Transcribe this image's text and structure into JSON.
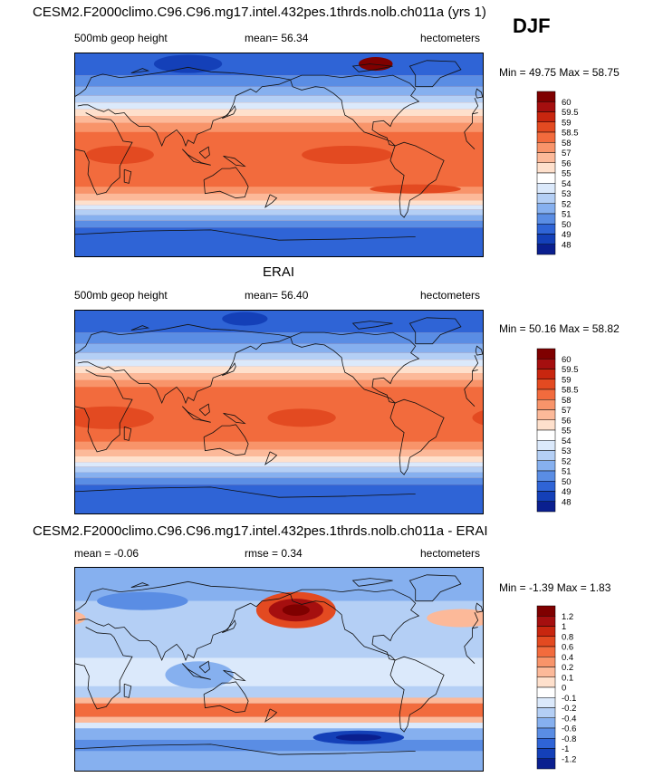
{
  "season": "DJF",
  "panels": [
    {
      "title": "CESM2.F2000climo.C96.C96.mg17.intel.432pes.1thrds.nolb.ch011a (yrs 1)",
      "left_label": "500mb geop height",
      "mid_label": "mean=  56.34",
      "units": "hectometers",
      "minmax": "Min =  49.75 Max =  58.75",
      "colorbar": {
        "labels": [
          "60",
          "59.5",
          "59",
          "58.5",
          "58",
          "57",
          "56",
          "55",
          "54",
          "53",
          "52",
          "51",
          "50",
          "49",
          "48"
        ],
        "colors": [
          "#7f0000",
          "#a50f0f",
          "#c8260f",
          "#e34a21",
          "#f26b3d",
          "#f8946a",
          "#fcb999",
          "#fee0cc",
          "#ffffff",
          "#dbe9fb",
          "#b4cff5",
          "#86b0ef",
          "#5a8de4",
          "#2f64d6",
          "#1440b8",
          "#0a1f8f"
        ]
      },
      "field": {
        "base": "#f26b3d",
        "bands_deg": [
          {
            "lat0": 90,
            "lat1": 70,
            "color": "#2f64d6"
          },
          {
            "lat0": 70,
            "lat1": 60,
            "color": "#5a8de4"
          },
          {
            "lat0": 60,
            "lat1": 52,
            "color": "#86b0ef"
          },
          {
            "lat0": 52,
            "lat1": 46,
            "color": "#b4cff5"
          },
          {
            "lat0": 46,
            "lat1": 40,
            "color": "#dbe9fb"
          },
          {
            "lat0": 40,
            "lat1": 34,
            "color": "#fee0cc"
          },
          {
            "lat0": 34,
            "lat1": 28,
            "color": "#fcb999"
          },
          {
            "lat0": 28,
            "lat1": 20,
            "color": "#f8946a"
          },
          {
            "lat0": 20,
            "lat1": -28,
            "color": "#f26b3d"
          },
          {
            "lat0": -28,
            "lat1": -34,
            "color": "#f8946a"
          },
          {
            "lat0": -34,
            "lat1": -40,
            "color": "#fcb999"
          },
          {
            "lat0": -40,
            "lat1": -44,
            "color": "#fee0cc"
          },
          {
            "lat0": -44,
            "lat1": -48,
            "color": "#dbe9fb"
          },
          {
            "lat0": -48,
            "lat1": -53,
            "color": "#b4cff5"
          },
          {
            "lat0": -53,
            "lat1": -58,
            "color": "#86b0ef"
          },
          {
            "lat0": -58,
            "lat1": -64,
            "color": "#5a8de4"
          },
          {
            "lat0": -64,
            "lat1": -90,
            "color": "#2f64d6"
          }
        ],
        "blobs": [
          {
            "lon": -120,
            "lat": 0,
            "rlon": 40,
            "rlat": 8,
            "color": "#e34a21"
          },
          {
            "lon": 40,
            "lat": 0,
            "rlon": 30,
            "rlat": 8,
            "color": "#e34a21"
          },
          {
            "lon": -60,
            "lat": -30,
            "rlon": 40,
            "rlat": 4,
            "color": "#e34a21"
          },
          {
            "lon": 100,
            "lat": 80,
            "rlon": 30,
            "rlat": 8,
            "color": "#1440b8"
          },
          {
            "lon": -95,
            "lat": 80,
            "rlon": 15,
            "rlat": 6,
            "color": "#7f0000"
          }
        ]
      }
    },
    {
      "title": "ERAI",
      "left_label": "500mb geop height",
      "mid_label": "mean=  56.40",
      "units": "hectometers",
      "minmax": "Min =  50.16 Max =  58.82",
      "colorbar": {
        "labels": [
          "60",
          "59.5",
          "59",
          "58.5",
          "58",
          "57",
          "56",
          "55",
          "54",
          "53",
          "52",
          "51",
          "50",
          "49",
          "48"
        ],
        "colors": [
          "#7f0000",
          "#a50f0f",
          "#c8260f",
          "#e34a21",
          "#f26b3d",
          "#f8946a",
          "#fcb999",
          "#fee0cc",
          "#ffffff",
          "#dbe9fb",
          "#b4cff5",
          "#86b0ef",
          "#5a8de4",
          "#2f64d6",
          "#1440b8",
          "#0a1f8f"
        ]
      },
      "field": {
        "base": "#f26b3d",
        "bands_deg": [
          {
            "lat0": 90,
            "lat1": 70,
            "color": "#2f64d6"
          },
          {
            "lat0": 70,
            "lat1": 60,
            "color": "#5a8de4"
          },
          {
            "lat0": 60,
            "lat1": 52,
            "color": "#86b0ef"
          },
          {
            "lat0": 52,
            "lat1": 46,
            "color": "#b4cff5"
          },
          {
            "lat0": 46,
            "lat1": 40,
            "color": "#dbe9fb"
          },
          {
            "lat0": 40,
            "lat1": 34,
            "color": "#fee0cc"
          },
          {
            "lat0": 34,
            "lat1": 28,
            "color": "#fcb999"
          },
          {
            "lat0": 28,
            "lat1": 22,
            "color": "#f8946a"
          },
          {
            "lat0": 22,
            "lat1": -26,
            "color": "#f26b3d"
          },
          {
            "lat0": -26,
            "lat1": -33,
            "color": "#f8946a"
          },
          {
            "lat0": -33,
            "lat1": -39,
            "color": "#fcb999"
          },
          {
            "lat0": -39,
            "lat1": -44,
            "color": "#fee0cc"
          },
          {
            "lat0": -44,
            "lat1": -48,
            "color": "#dbe9fb"
          },
          {
            "lat0": -48,
            "lat1": -53,
            "color": "#b4cff5"
          },
          {
            "lat0": -53,
            "lat1": -58,
            "color": "#86b0ef"
          },
          {
            "lat0": -58,
            "lat1": -64,
            "color": "#5a8de4"
          },
          {
            "lat0": -64,
            "lat1": -90,
            "color": "#2f64d6"
          }
        ],
        "blobs": [
          {
            "lon": -160,
            "lat": -5,
            "rlon": 30,
            "rlat": 8,
            "color": "#e34a21"
          },
          {
            "lon": 30,
            "lat": -5,
            "rlon": 40,
            "rlat": 10,
            "color": "#e34a21"
          },
          {
            "lon": 150,
            "lat": 82,
            "rlon": 20,
            "rlat": 6,
            "color": "#1440b8"
          }
        ]
      }
    },
    {
      "title": "CESM2.F2000climo.C96.C96.mg17.intel.432pes.1thrds.nolb.ch011a - ERAI",
      "left_label": "mean =  -0.06",
      "mid_label": "rmse =   0.34",
      "units": "hectometers",
      "minmax": "Min =  -1.39 Max =   1.83",
      "colorbar": {
        "labels": [
          "1.2",
          "1",
          "0.8",
          "0.6",
          "0.4",
          "0.2",
          "0.1",
          "0",
          "-0.1",
          "-0.2",
          "-0.4",
          "-0.6",
          "-0.8",
          "-1",
          "-1.2"
        ],
        "colors": [
          "#7f0000",
          "#a50f0f",
          "#c8260f",
          "#e34a21",
          "#f26b3d",
          "#f8946a",
          "#fcb999",
          "#fee0cc",
          "#ffffff",
          "#dbe9fb",
          "#b4cff5",
          "#86b0ef",
          "#5a8de4",
          "#2f64d6",
          "#1440b8",
          "#0a1f8f"
        ]
      },
      "field": {
        "base": "#b4cff5",
        "bands_deg": [
          {
            "lat0": 90,
            "lat1": 60,
            "color": "#86b0ef"
          },
          {
            "lat0": 60,
            "lat1": 10,
            "color": "#b4cff5"
          },
          {
            "lat0": 10,
            "lat1": -15,
            "color": "#dbe9fb"
          },
          {
            "lat0": -15,
            "lat1": -25,
            "color": "#b4cff5"
          },
          {
            "lat0": -25,
            "lat1": -30,
            "color": "#fcb999"
          },
          {
            "lat0": -30,
            "lat1": -42,
            "color": "#f26b3d"
          },
          {
            "lat0": -42,
            "lat1": -47,
            "color": "#fcb999"
          },
          {
            "lat0": -47,
            "lat1": -52,
            "color": "#dbe9fb"
          },
          {
            "lat0": -52,
            "lat1": -62,
            "color": "#86b0ef"
          },
          {
            "lat0": -62,
            "lat1": -72,
            "color": "#5a8de4"
          },
          {
            "lat0": -72,
            "lat1": -90,
            "color": "#86b0ef"
          }
        ],
        "blobs": [
          {
            "lon": -165,
            "lat": 52,
            "rlon": 35,
            "rlat": 16,
            "color": "#e34a21"
          },
          {
            "lon": -165,
            "lat": 52,
            "rlon": 24,
            "rlat": 10,
            "color": "#a50f0f"
          },
          {
            "lon": -165,
            "lat": 52,
            "rlon": 12,
            "rlat": 5,
            "color": "#7f0000"
          },
          {
            "lon": -20,
            "lat": 45,
            "rlon": 30,
            "rlat": 8,
            "color": "#fcb999"
          },
          {
            "lon": -110,
            "lat": -60,
            "rlon": 40,
            "rlat": 6,
            "color": "#1440b8"
          },
          {
            "lon": -110,
            "lat": -60,
            "rlon": 20,
            "rlat": 3,
            "color": "#0a1f8f"
          },
          {
            "lon": 110,
            "lat": -5,
            "rlon": 30,
            "rlat": 12,
            "color": "#86b0ef"
          },
          {
            "lon": 60,
            "lat": 60,
            "rlon": 40,
            "rlat": 8,
            "color": "#5a8de4"
          }
        ]
      }
    }
  ]
}
